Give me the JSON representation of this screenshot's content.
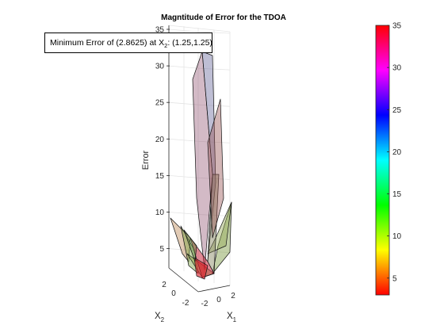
{
  "chart_data": {
    "type": "surface3d",
    "title": "Magntitude of Error for the TDOA",
    "zlabel": "Error",
    "xlabel": "X",
    "xlabel_sub": "1",
    "ylabel": "X",
    "ylabel_sub": "2",
    "zlim": [
      3,
      35
    ],
    "z_ticks": [
      "5",
      "10",
      "15",
      "20",
      "25",
      "30",
      "35"
    ],
    "x_ticks": [
      "-2",
      "0",
      "2"
    ],
    "y_ticks": [
      "-2",
      "0",
      "2"
    ],
    "grid": true,
    "colormap": "hsv",
    "colorbar": {
      "limits": [
        3,
        35
      ],
      "ticks": [
        "5",
        "10",
        "15",
        "20",
        "25",
        "30",
        "35"
      ]
    },
    "annotation": {
      "prefix": "Minimum Error of (2.8625) at X",
      "sub": "2",
      "suffix": ": (1.25,1.25)"
    },
    "minimum": {
      "error": 2.8625,
      "x1": 1.25,
      "x2": 1.25
    }
  },
  "colors": {
    "axis": "#262626",
    "grid": "#e6e6e6"
  }
}
